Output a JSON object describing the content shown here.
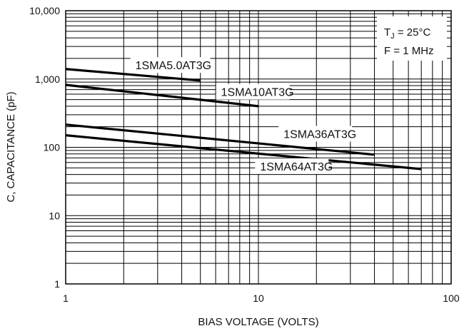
{
  "chart_data": {
    "type": "line",
    "title": "",
    "xlabel": "BIAS VOLTAGE (VOLTS)",
    "ylabel": "C, CAPACITANCE (pF)",
    "x_scale": "log",
    "y_scale": "log",
    "xlim": [
      1,
      100
    ],
    "ylim": [
      1,
      10000
    ],
    "x_ticks": [
      1,
      10,
      100
    ],
    "x_tick_labels": [
      "1",
      "10",
      "100"
    ],
    "y_ticks": [
      1,
      10,
      100,
      1000,
      10000
    ],
    "y_tick_labels": [
      "1",
      "10",
      "100",
      "1,000",
      "10,000"
    ],
    "grid": true,
    "conditions": {
      "tj_main": "T",
      "tj_sub": "J",
      "tj_rest": " = 25°C",
      "freq": "F = 1 MHz"
    },
    "series": [
      {
        "name": "1SMA5.0AT3G",
        "x": [
          1,
          5
        ],
        "y": [
          1400,
          950
        ]
      },
      {
        "name": "1SMA10AT3G",
        "x": [
          1,
          10
        ],
        "y": [
          820,
          400
        ]
      },
      {
        "name": "1SMA36AT3G",
        "x": [
          1,
          40
        ],
        "y": [
          215,
          78
        ]
      },
      {
        "name": "1SMA64AT3G",
        "x": [
          1,
          70
        ],
        "y": [
          150,
          48
        ]
      }
    ]
  }
}
